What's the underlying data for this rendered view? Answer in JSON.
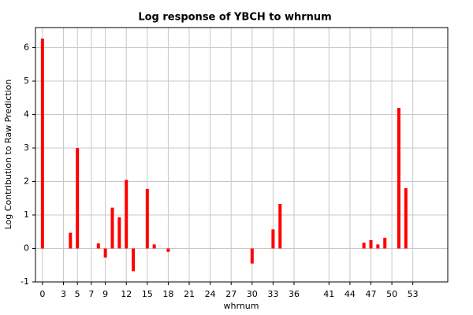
{
  "chart_data": {
    "type": "bar",
    "title": "Log response of YBCH to whrnum",
    "x_label": "whrnum",
    "y_label": "Log Contribution to Raw Prediction",
    "x": [
      0,
      4,
      5,
      8,
      9,
      10,
      11,
      12,
      13,
      15,
      16,
      18,
      30,
      33,
      34,
      46,
      47,
      48,
      49,
      51,
      52
    ],
    "values": [
      6.27,
      0.47,
      3.0,
      0.15,
      -0.27,
      1.22,
      0.93,
      2.05,
      -0.68,
      1.78,
      0.12,
      -0.1,
      -0.45,
      0.57,
      1.33,
      0.17,
      0.25,
      0.12,
      0.32,
      4.2,
      1.8
    ],
    "color": "#ff0000",
    "xlim": [
      -1,
      58
    ],
    "xticks": [
      0,
      3,
      5,
      7,
      9,
      12,
      15,
      18,
      21,
      24,
      27,
      30,
      33,
      36,
      41,
      44,
      47,
      50,
      53
    ],
    "ylim": [
      -1,
      6.6
    ],
    "yticks": [
      -1,
      0,
      1,
      2,
      3,
      4,
      5,
      6
    ],
    "grid": true
  }
}
